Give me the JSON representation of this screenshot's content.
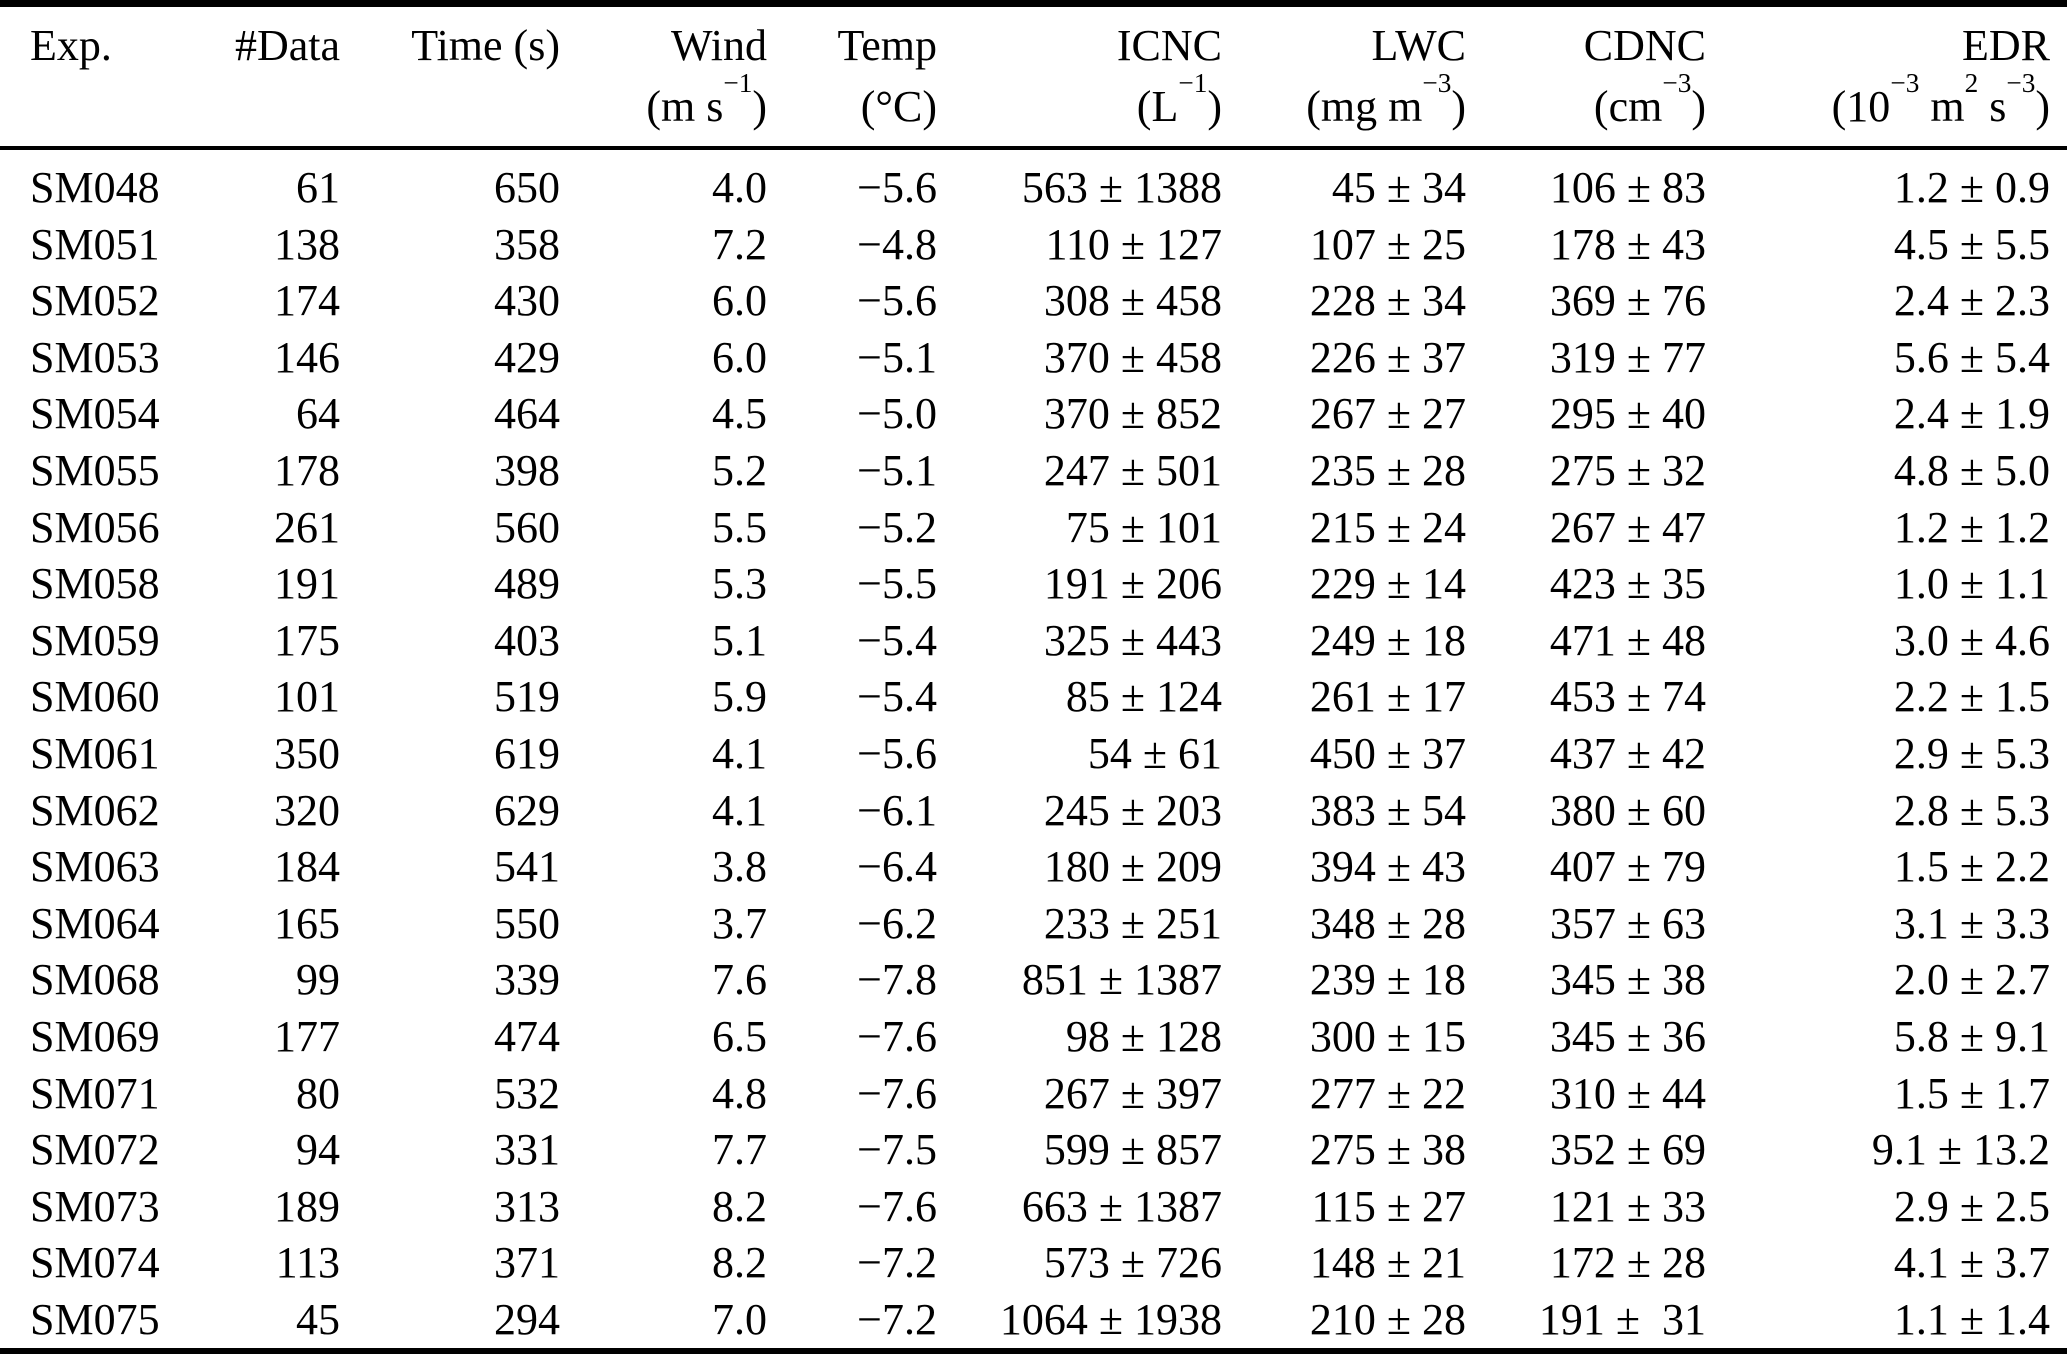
{
  "table": {
    "columns": [
      {
        "id": "exp",
        "label": "Exp.",
        "unit": ""
      },
      {
        "id": "ndata",
        "label": "#Data",
        "unit": ""
      },
      {
        "id": "time",
        "label": "Time (s)",
        "unit": ""
      },
      {
        "id": "wind",
        "label": "Wind",
        "unit": "(m s^{−1})"
      },
      {
        "id": "temp",
        "label": "Temp",
        "unit": "(°C)"
      },
      {
        "id": "icnc",
        "label": "ICNC",
        "unit": "(L^{−1})"
      },
      {
        "id": "lwc",
        "label": "LWC",
        "unit": "(mg m^{−3})"
      },
      {
        "id": "cdnc",
        "label": "CDNC",
        "unit": "(cm^{−3})"
      },
      {
        "id": "edr",
        "label": "EDR",
        "unit": "(10^{−3} m^{2} s^{−3})"
      }
    ],
    "rows": [
      [
        "SM048",
        "61",
        "650",
        "4.0",
        "−5.6",
        "563 ± 1388",
        "45 ± 34",
        "106 ± 83",
        "1.2 ± 0.9"
      ],
      [
        "SM051",
        "138",
        "358",
        "7.2",
        "−4.8",
        "110 ± 127",
        "107 ± 25",
        "178 ± 43",
        "4.5 ± 5.5"
      ],
      [
        "SM052",
        "174",
        "430",
        "6.0",
        "−5.6",
        "308 ± 458",
        "228 ± 34",
        "369 ± 76",
        "2.4 ± 2.3"
      ],
      [
        "SM053",
        "146",
        "429",
        "6.0",
        "−5.1",
        "370 ± 458",
        "226 ± 37",
        "319 ± 77",
        "5.6 ± 5.4"
      ],
      [
        "SM054",
        "64",
        "464",
        "4.5",
        "−5.0",
        "370 ± 852",
        "267 ± 27",
        "295 ± 40",
        "2.4 ± 1.9"
      ],
      [
        "SM055",
        "178",
        "398",
        "5.2",
        "−5.1",
        "247 ± 501",
        "235 ± 28",
        "275 ± 32",
        "4.8 ± 5.0"
      ],
      [
        "SM056",
        "261",
        "560",
        "5.5",
        "−5.2",
        "75 ± 101",
        "215 ± 24",
        "267 ± 47",
        "1.2 ± 1.2"
      ],
      [
        "SM058",
        "191",
        "489",
        "5.3",
        "−5.5",
        "191 ± 206",
        "229 ± 14",
        "423 ± 35",
        "1.0 ± 1.1"
      ],
      [
        "SM059",
        "175",
        "403",
        "5.1",
        "−5.4",
        "325 ± 443",
        "249 ± 18",
        "471 ± 48",
        "3.0 ± 4.6"
      ],
      [
        "SM060",
        "101",
        "519",
        "5.9",
        "−5.4",
        "85 ± 124",
        "261 ± 17",
        "453 ± 74",
        "2.2 ± 1.5"
      ],
      [
        "SM061",
        "350",
        "619",
        "4.1",
        "−5.6",
        "54 ± 61",
        "450 ± 37",
        "437 ± 42",
        "2.9 ± 5.3"
      ],
      [
        "SM062",
        "320",
        "629",
        "4.1",
        "−6.1",
        "245 ± 203",
        "383 ± 54",
        "380 ± 60",
        "2.8 ± 5.3"
      ],
      [
        "SM063",
        "184",
        "541",
        "3.8",
        "−6.4",
        "180 ± 209",
        "394 ± 43",
        "407 ± 79",
        "1.5 ± 2.2"
      ],
      [
        "SM064",
        "165",
        "550",
        "3.7",
        "−6.2",
        "233 ± 251",
        "348 ± 28",
        "357 ± 63",
        "3.1 ± 3.3"
      ],
      [
        "SM068",
        "99",
        "339",
        "7.6",
        "−7.8",
        "851 ± 1387",
        "239 ± 18",
        "345 ± 38",
        "2.0 ± 2.7"
      ],
      [
        "SM069",
        "177",
        "474",
        "6.5",
        "−7.6",
        "98 ± 128",
        "300 ± 15",
        "345 ± 36",
        "5.8 ± 9.1"
      ],
      [
        "SM071",
        "80",
        "532",
        "4.8",
        "−7.6",
        "267 ± 397",
        "277 ± 22",
        "310 ± 44",
        "1.5 ± 1.7"
      ],
      [
        "SM072",
        "94",
        "331",
        "7.7",
        "−7.5",
        "599 ± 857",
        "275 ± 38",
        "352 ± 69",
        "9.1 ± 13.2"
      ],
      [
        "SM073",
        "189",
        "313",
        "8.2",
        "−7.6",
        "663 ± 1387",
        "115 ± 27",
        "121 ± 33",
        "2.9 ± 2.5"
      ],
      [
        "SM074",
        "113",
        "371",
        "8.2",
        "−7.2",
        "573 ± 726",
        "148 ± 21",
        "172 ± 28",
        "4.1 ± 3.7"
      ],
      [
        "SM075",
        "45",
        "294",
        "7.0",
        "−7.2",
        "1064 ± 1938",
        "210 ± 28",
        "191 ±  31",
        "1.1 ± 1.4"
      ]
    ]
  }
}
